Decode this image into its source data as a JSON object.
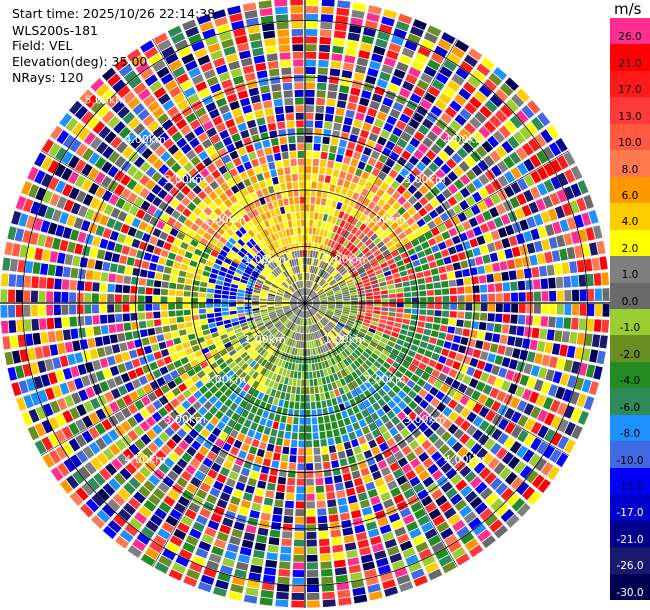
{
  "header": {
    "start_time": "Start time: 2025/10/26 22:14:38",
    "station": "WLS200s-181",
    "field": "Field: VEL",
    "elevation": "Elevation(deg): 35.00",
    "nrays": "NRays: 120"
  },
  "colorbar": {
    "unit": "m/s",
    "levels": [
      {
        "label": "26.0",
        "color": "#ff2f92"
      },
      {
        "label": "21.0",
        "color": "#ff0000"
      },
      {
        "label": "17.0",
        "color": "#ff1a1a"
      },
      {
        "label": "13.0",
        "color": "#ff3a3a"
      },
      {
        "label": "10.0",
        "color": "#ff5a40"
      },
      {
        "label": "8.0",
        "color": "#ff7a50"
      },
      {
        "label": "6.0",
        "color": "#ff9900"
      },
      {
        "label": "4.0",
        "color": "#ffcc00"
      },
      {
        "label": "2.0",
        "color": "#ffff00"
      },
      {
        "label": "1.0",
        "color": "#7f7f7f"
      },
      {
        "label": "0.0",
        "color": "#6a6a6a"
      },
      {
        "label": "-1.0",
        "color": "#9acd32"
      },
      {
        "label": "-2.0",
        "color": "#6b8e23"
      },
      {
        "label": "-4.0",
        "color": "#228b22"
      },
      {
        "label": "-6.0",
        "color": "#2e8b57"
      },
      {
        "label": "-8.0",
        "color": "#1e90ff"
      },
      {
        "label": "-10.0",
        "color": "#4169e1"
      },
      {
        "label": "-13.0",
        "color": "#0000ff"
      },
      {
        "label": "-17.0",
        "color": "#0000cd"
      },
      {
        "label": "-21.0",
        "color": "#00008b"
      },
      {
        "label": "-26.0",
        "color": "#191970"
      },
      {
        "label": "-30.0",
        "color": "#000050"
      }
    ]
  },
  "range_labels": [
    "1.00km",
    "2.00km",
    "3.00km",
    "4.00km",
    "5.00km"
  ],
  "chart_data": {
    "type": "heatmap",
    "projection": "polar PPI",
    "field": "VEL",
    "unit": "m/s",
    "elevation_deg": 35.0,
    "n_rays": 120,
    "range_rings_km": [
      1,
      2,
      3,
      4,
      5
    ],
    "value_range": [
      -30.0,
      26.0
    ],
    "description_zones": [
      {
        "sector": "north-east near range",
        "dominant_values_ms": [
          6,
          13,
          17
        ]
      },
      {
        "sector": "north near range",
        "dominant_values_ms": [
          2,
          4,
          6
        ]
      },
      {
        "sector": "west near range",
        "dominant_values_ms": [
          -13,
          -17,
          2
        ]
      },
      {
        "sector": "south near range",
        "dominant_values_ms": [
          -1,
          -2,
          -4,
          -6
        ]
      },
      {
        "sector": "center",
        "dominant_values_ms": [
          0,
          1,
          2
        ]
      },
      {
        "sector": "outer range",
        "dominant_values_ms": "noise (all levels)"
      }
    ]
  }
}
